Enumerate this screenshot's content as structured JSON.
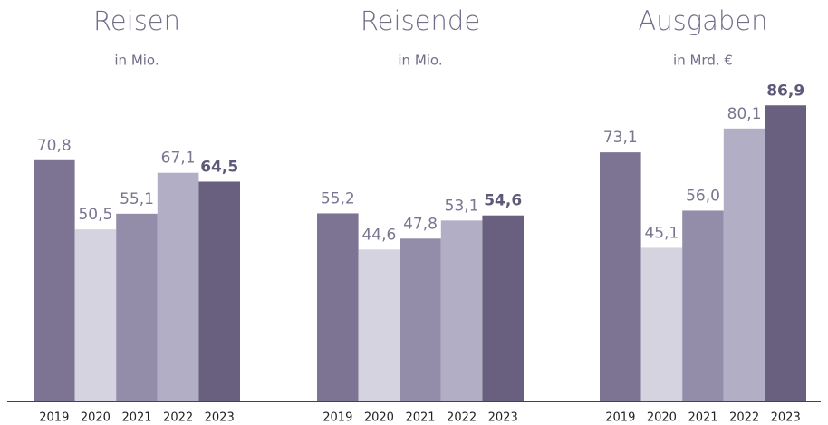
{
  "chart_data": [
    {
      "type": "bar",
      "title": "Reisen",
      "subtitle": "in Mio.",
      "categories": [
        "2019",
        "2020",
        "2021",
        "2022",
        "2023"
      ],
      "values": [
        70.8,
        50.5,
        55.1,
        67.1,
        64.5
      ],
      "value_labels": [
        "70,8",
        "50,5",
        "55,1",
        "67,1",
        "64,5"
      ],
      "colors": [
        "#7d7393",
        "#d5d3e0",
        "#948da9",
        "#b2aec6",
        "#68607e"
      ],
      "ylim": [
        0,
        100
      ]
    },
    {
      "type": "bar",
      "title": "Reisende",
      "subtitle": "in Mio.",
      "categories": [
        "2019",
        "2020",
        "2021",
        "2022",
        "2023"
      ],
      "values": [
        55.2,
        44.6,
        47.8,
        53.1,
        54.6
      ],
      "value_labels": [
        "55,2",
        "44,6",
        "47,8",
        "53,1",
        "54,6"
      ],
      "colors": [
        "#7d7393",
        "#d5d3e0",
        "#948da9",
        "#b2aec6",
        "#68607e"
      ],
      "ylim": [
        0,
        100
      ]
    },
    {
      "type": "bar",
      "title": "Ausgaben",
      "subtitle": "in Mrd. €",
      "categories": [
        "2019",
        "2020",
        "2021",
        "2022",
        "2023"
      ],
      "values": [
        73.1,
        45.1,
        56.0,
        80.1,
        86.9
      ],
      "value_labels": [
        "73,1",
        "45,1",
        "56,0",
        "80,1",
        "86,9"
      ],
      "colors": [
        "#7d7393",
        "#d5d3e0",
        "#948da9",
        "#b2aec6",
        "#68607e"
      ],
      "ylim": [
        0,
        100
      ]
    }
  ]
}
